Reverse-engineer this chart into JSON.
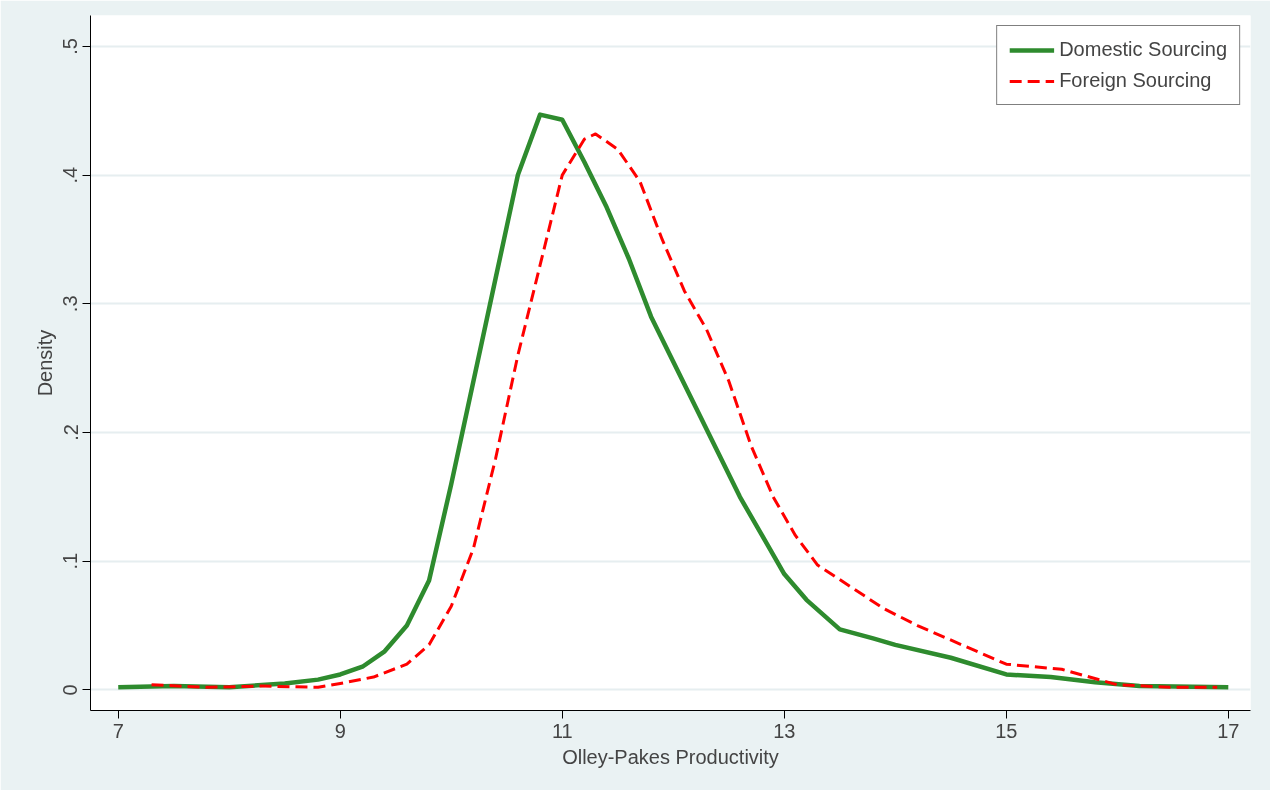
{
  "chart_data": {
    "type": "line",
    "xlabel": "Olley-Pakes Productivity",
    "ylabel": "Density",
    "xlim": [
      6.75,
      17.2
    ],
    "ylim": [
      -0.016,
      0.524
    ],
    "xticks": [
      7,
      9,
      11,
      13,
      15,
      17
    ],
    "yticks": [
      0,
      {
        "value": 0.1,
        "label": ".1"
      },
      {
        "value": 0.2,
        "label": ".2"
      },
      {
        "value": 0.3,
        "label": ".3"
      },
      {
        "value": 0.4,
        "label": ".4"
      },
      {
        "value": 0.5,
        "label": ".5"
      }
    ],
    "grid": "y",
    "legend": "top right",
    "series": [
      {
        "name": "Domestic Sourcing",
        "color": "#2e8b2e",
        "line_style": "solid",
        "x": [
          7,
          7.5,
          8,
          8.5,
          8.8,
          9,
          9.2,
          9.4,
          9.6,
          9.8,
          10,
          10.2,
          10.4,
          10.6,
          10.8,
          11,
          11.2,
          11.4,
          11.6,
          11.8,
          12,
          12.2,
          12.4,
          12.6,
          12.8,
          13,
          13.2,
          13.5,
          13.8,
          14,
          14.5,
          15,
          15.4,
          15.8,
          16.2,
          17
        ],
        "values": [
          0.002,
          0.003,
          0.002,
          0.005,
          0.008,
          0.012,
          0.018,
          0.03,
          0.05,
          0.085,
          0.16,
          0.24,
          0.32,
          0.4,
          0.447,
          0.443,
          0.41,
          0.375,
          0.335,
          0.29,
          0.255,
          0.22,
          0.185,
          0.15,
          0.12,
          0.09,
          0.07,
          0.047,
          0.04,
          0.035,
          0.025,
          0.012,
          0.01,
          0.006,
          0.003,
          0.002
        ]
      },
      {
        "name": "Foreign Sourcing",
        "color": "#ff0000",
        "line_style": "dashed",
        "x": [
          7.3,
          7.8,
          8.3,
          8.8,
          9,
          9.3,
          9.6,
          9.8,
          10,
          10.2,
          10.4,
          10.6,
          10.8,
          11,
          11.2,
          11.3,
          11.5,
          11.7,
          11.9,
          12.1,
          12.3,
          12.5,
          12.7,
          12.9,
          13.1,
          13.3,
          13.6,
          13.9,
          14.2,
          14.6,
          15,
          15.5,
          16,
          16.5,
          16.9
        ],
        "values": [
          0.004,
          0.002,
          0.003,
          0.002,
          0.005,
          0.01,
          0.02,
          0.035,
          0.065,
          0.11,
          0.18,
          0.26,
          0.33,
          0.4,
          0.428,
          0.432,
          0.42,
          0.395,
          0.35,
          0.31,
          0.28,
          0.24,
          0.19,
          0.15,
          0.12,
          0.097,
          0.08,
          0.063,
          0.05,
          0.035,
          0.02,
          0.016,
          0.004,
          0.002,
          0.002
        ]
      }
    ]
  }
}
